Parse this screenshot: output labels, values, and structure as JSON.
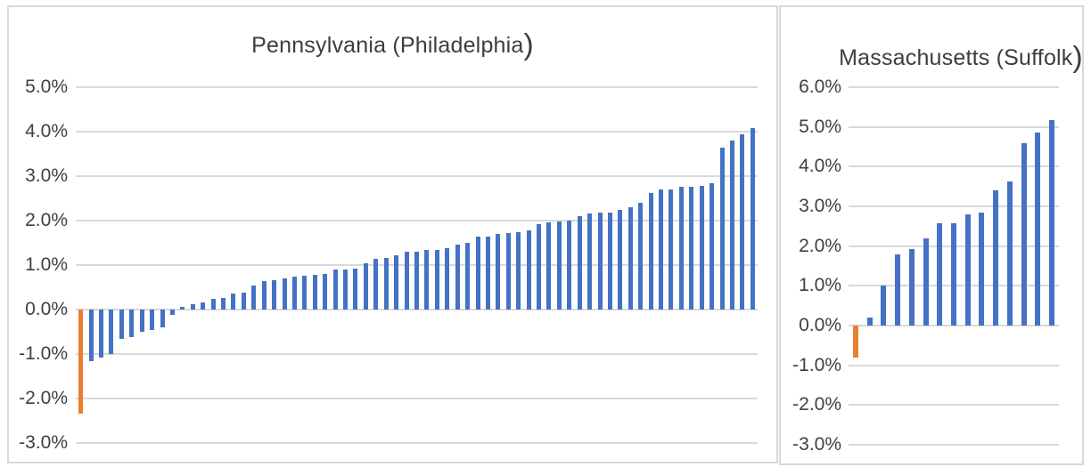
{
  "page": {
    "background": "#ffffff",
    "panel_border_color": "#D9D9D9"
  },
  "chart_data": [
    {
      "type": "bar",
      "title": "Pennsylvania (Philadelphia)",
      "title_body": "Pennsylvania (Philadelphia",
      "title_paren": ")",
      "xlabel": "",
      "ylabel": "",
      "unit": "percent",
      "ylim": [
        -3.0,
        5.0
      ],
      "ytick_step": 1.0,
      "ytick_labels": [
        "5.0%",
        "4.0%",
        "3.0%",
        "2.0%",
        "1.0%",
        "0.0%",
        "-1.0%",
        "-2.0%",
        "-3.0%"
      ],
      "grid": true,
      "legend": "none",
      "highlight_index": 0,
      "colors": {
        "bar": "#4472C4",
        "highlight": "#ED7D31",
        "grid": "#D9D9D9",
        "text": "#404040"
      },
      "values": [
        -2.34,
        -1.15,
        -1.07,
        -1.0,
        -0.65,
        -0.62,
        -0.5,
        -0.45,
        -0.4,
        -0.12,
        0.07,
        0.13,
        0.16,
        0.24,
        0.27,
        0.36,
        0.38,
        0.55,
        0.65,
        0.66,
        0.7,
        0.75,
        0.76,
        0.78,
        0.8,
        0.9,
        0.91,
        0.93,
        1.05,
        1.15,
        1.17,
        1.23,
        1.3,
        1.31,
        1.35,
        1.35,
        1.39,
        1.47,
        1.5,
        1.65,
        1.65,
        1.71,
        1.73,
        1.75,
        1.78,
        1.93,
        1.97,
        1.98,
        2.0,
        2.1,
        2.17,
        2.18,
        2.18,
        2.25,
        2.31,
        2.4,
        2.62,
        2.7,
        2.71,
        2.77,
        2.77,
        2.79,
        2.85,
        3.65,
        3.8,
        3.95,
        4.08
      ]
    },
    {
      "type": "bar",
      "title": "Massachusetts (Suffolk)",
      "title_body": "Massachusetts (Suffolk",
      "title_paren": ")",
      "xlabel": "",
      "ylabel": "",
      "unit": "percent",
      "ylim": [
        -3.0,
        6.0
      ],
      "ytick_step": 1.0,
      "ytick_labels": [
        "6.0%",
        "5.0%",
        "4.0%",
        "3.0%",
        "2.0%",
        "1.0%",
        "0.0%",
        "-1.0%",
        "-2.0%",
        "-3.0%"
      ],
      "grid": true,
      "legend": "none",
      "highlight_index": 0,
      "colors": {
        "bar": "#4472C4",
        "highlight": "#ED7D31",
        "grid": "#D9D9D9",
        "text": "#404040"
      },
      "values": [
        -0.81,
        0.21,
        1.0,
        1.8,
        1.92,
        2.2,
        2.57,
        2.58,
        2.79,
        2.84,
        3.4,
        3.62,
        4.58,
        4.85,
        5.18
      ]
    }
  ]
}
